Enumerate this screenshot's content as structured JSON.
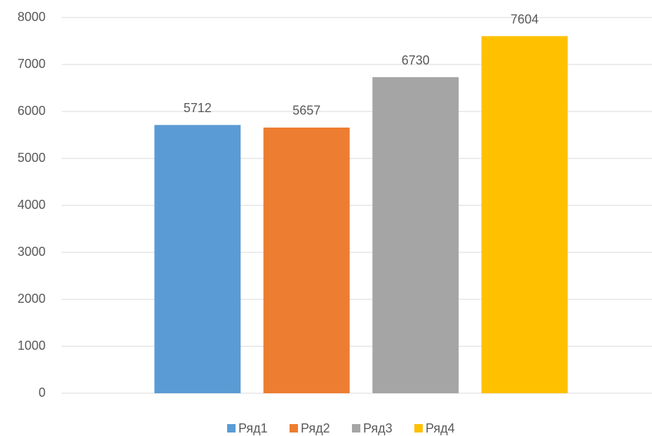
{
  "chart_data": {
    "type": "bar",
    "categories": [
      null
    ],
    "series": [
      {
        "name": "Ряд1",
        "color": "#5b9bd5",
        "values": [
          5712
        ]
      },
      {
        "name": "Ряд2",
        "color": "#ed7d31",
        "values": [
          5657
        ]
      },
      {
        "name": "Ряд3",
        "color": "#a5a5a5",
        "values": [
          6730
        ]
      },
      {
        "name": "Ряд4",
        "color": "#ffc000",
        "values": [
          7604
        ]
      }
    ],
    "ylim": [
      0,
      8000
    ],
    "yticks": [
      0,
      1000,
      2000,
      3000,
      4000,
      5000,
      6000,
      7000,
      8000
    ],
    "grid": true,
    "legend": "bottom"
  }
}
